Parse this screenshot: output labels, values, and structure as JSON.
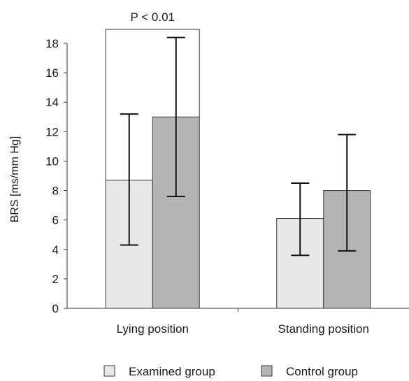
{
  "chart_data": {
    "type": "bar",
    "ylabel": "BRS [ms/mm Hg]",
    "xlabel": "",
    "ylim": [
      0,
      18
    ],
    "yticks": [
      0,
      2,
      4,
      6,
      8,
      10,
      12,
      14,
      16,
      18
    ],
    "categories": [
      "Lying position",
      "Standing position"
    ],
    "series": [
      {
        "name": "Examined group",
        "values": [
          8.7,
          6.1
        ],
        "err_low": [
          4.3,
          3.6
        ],
        "err_high": [
          13.2,
          8.5
        ],
        "color": "#e8e8e8"
      },
      {
        "name": "Control group",
        "values": [
          13.0,
          8.0
        ],
        "err_low": [
          7.6,
          3.9
        ],
        "err_high": [
          18.4,
          11.8
        ],
        "color": "#b4b4b4"
      }
    ],
    "annotation": {
      "text": "P < 0.01",
      "category": "Lying position"
    },
    "legend_position": "bottom",
    "grid": false
  }
}
